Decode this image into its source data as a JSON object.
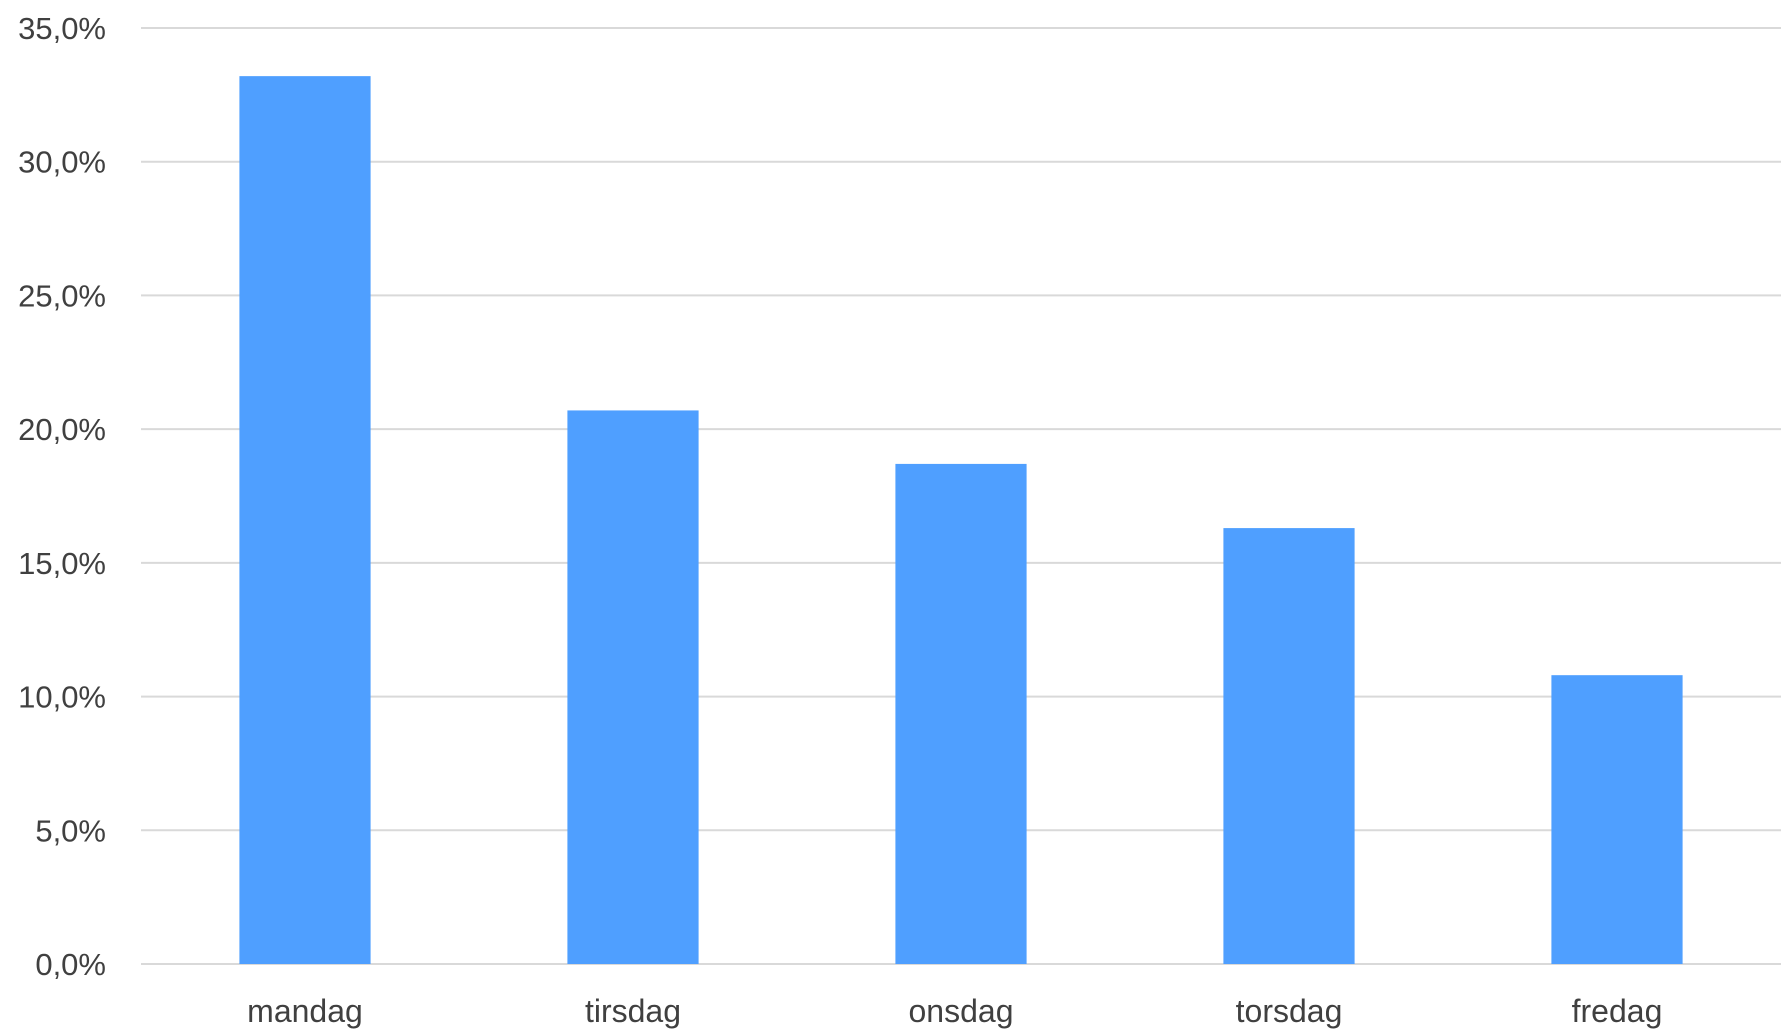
{
  "chart_data": {
    "type": "bar",
    "categories": [
      "mandag",
      "tirsdag",
      "onsdag",
      "torsdag",
      "fredag"
    ],
    "values": [
      33.2,
      20.7,
      18.7,
      16.3,
      10.8
    ],
    "ylim": [
      0,
      35
    ],
    "yticks": [
      0,
      5,
      10,
      15,
      20,
      25,
      30,
      35
    ],
    "ytick_labels": [
      "0,0%",
      "5,0%",
      "10,0%",
      "15,0%",
      "20,0%",
      "25,0%",
      "30,0%",
      "35,0%"
    ],
    "title": "",
    "xlabel": "",
    "ylabel": "",
    "grid": true,
    "legend": "none",
    "bar_color": "#4f9fff"
  }
}
